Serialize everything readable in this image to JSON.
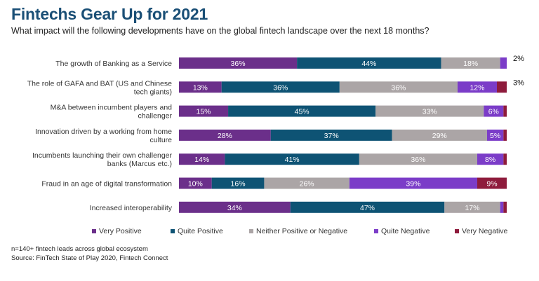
{
  "title": "Fintechs Gear Up for 2021",
  "subtitle": "What impact will the following developments have on the global fintech landscape over the next 18 months?",
  "footnote": {
    "line1": "n=140+ fintech leads across global ecosystem",
    "line2": "Source: FinTech State of Play 2020, Fintech Connect"
  },
  "chart_data": {
    "type": "bar",
    "orientation": "horizontal",
    "stacked": true,
    "normalized": true,
    "categories": [
      [
        "The growth of Banking as a Service"
      ],
      [
        "The role of GAFA and BAT (US and Chinese",
        "tech giants)"
      ],
      [
        "M&A between incumbent players and",
        "challenger"
      ],
      [
        "Innovation driven by a working from home",
        "culture"
      ],
      [
        "Incumbents launching their own challenger",
        "banks (Marcus etc.)"
      ],
      [
        "Fraud in an age of digital transformation"
      ],
      [
        "Increased interoperability"
      ]
    ],
    "series": [
      {
        "name": "Very Positive",
        "color": "#6b2f8a",
        "values": [
          36,
          13,
          15,
          28,
          14,
          10,
          34
        ],
        "labels": [
          "36%",
          "13%",
          "15%",
          "28%",
          "14%",
          "10%",
          "34%"
        ]
      },
      {
        "name": "Quite Positive",
        "color": "#0e5374",
        "values": [
          44,
          36,
          45,
          37,
          41,
          16,
          47
        ],
        "labels": [
          "44%",
          "36%",
          "45%",
          "37%",
          "41%",
          "16%",
          "47%"
        ]
      },
      {
        "name": "Neither Positive or Negative",
        "color": "#aba5a6",
        "values": [
          18,
          36,
          33,
          29,
          36,
          26,
          17
        ],
        "labels": [
          "18%",
          "36%",
          "33%",
          "29%",
          "36%",
          "26%",
          "17%"
        ]
      },
      {
        "name": "Quite Negative",
        "color": "#7b3cc8",
        "values": [
          2,
          12,
          6,
          5,
          8,
          39,
          1
        ],
        "labels": [
          "",
          "12%",
          "6%",
          "5%",
          "8%",
          "39%",
          ""
        ]
      },
      {
        "name": "Very Negative",
        "color": "#8e1b3c",
        "values": [
          0,
          3,
          1,
          1,
          1,
          9,
          1
        ],
        "labels": [
          "",
          "",
          "",
          "",
          "",
          "9%",
          ""
        ]
      }
    ],
    "outside_labels": [
      {
        "row": 0,
        "series": 3,
        "text": "2%"
      },
      {
        "row": 1,
        "series": 4,
        "text": "3%"
      }
    ],
    "legend": "bottom",
    "grid": false
  }
}
